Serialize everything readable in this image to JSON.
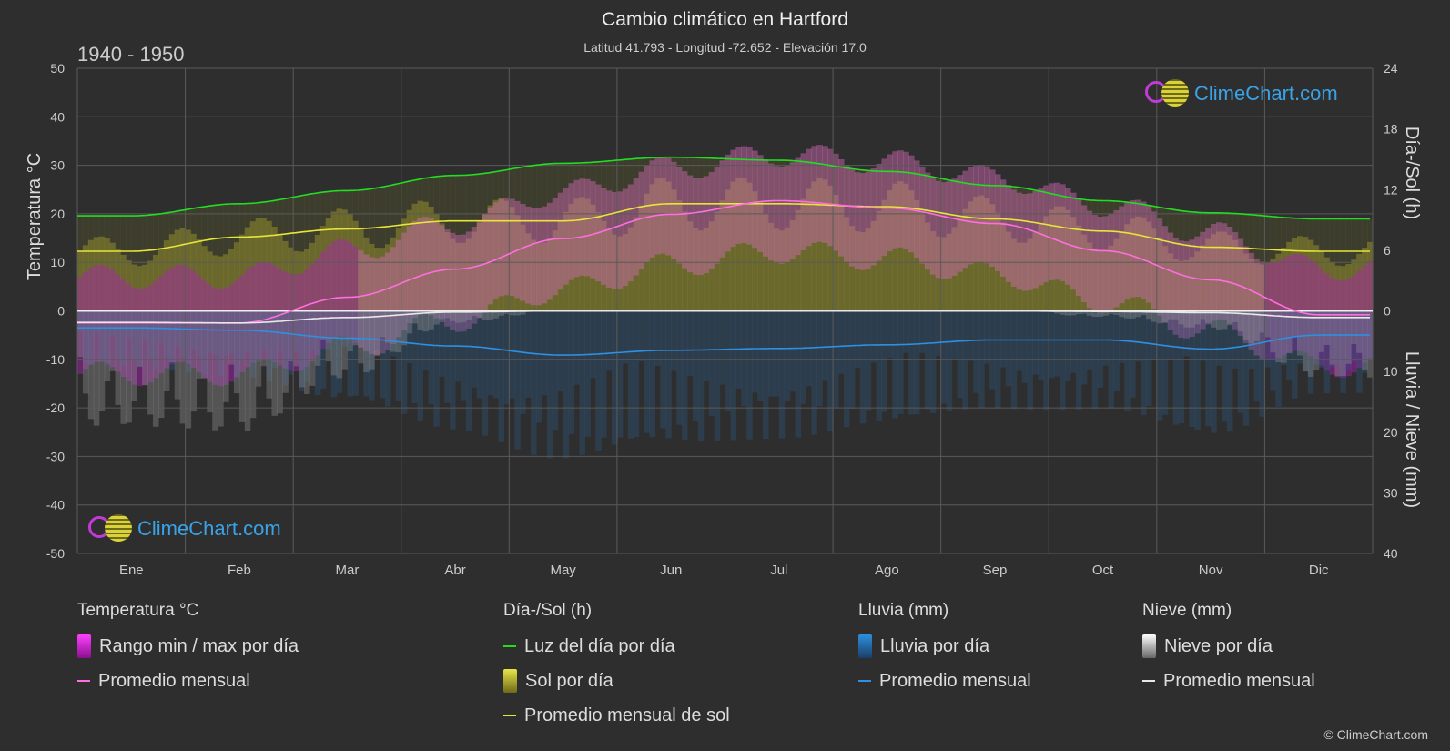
{
  "header": {
    "title": "Cambio climático en Hartford",
    "subtitle": "Latitud 41.793 - Longitud -72.652 - Elevación 17.0",
    "period": "1940 - 1950"
  },
  "chart_data": {
    "type": "line",
    "months": [
      "Ene",
      "Feb",
      "Mar",
      "Abr",
      "May",
      "Jun",
      "Jul",
      "Ago",
      "Sep",
      "Oct",
      "Nov",
      "Dic"
    ],
    "axes": {
      "left": {
        "label": "Temperatura °C",
        "min": -50,
        "max": 50,
        "ticks": [
          50,
          40,
          30,
          20,
          10,
          0,
          -10,
          -20,
          -30,
          -40,
          -50
        ]
      },
      "right_top": {
        "label": "Día-/Sol (h)",
        "min": 0,
        "max": 24,
        "ticks": [
          24,
          18,
          12,
          6,
          0
        ]
      },
      "right_bottom": {
        "label": "Lluvia / Nieve (mm)",
        "min": 0,
        "max": 40,
        "ticks": [
          0,
          10,
          20,
          30,
          40
        ]
      }
    },
    "series": [
      {
        "name": "Luz del día por día",
        "axis": "right_top",
        "color": "#22dd22",
        "values": [
          9.4,
          10.6,
          11.9,
          13.4,
          14.6,
          15.2,
          14.9,
          13.8,
          12.4,
          10.9,
          9.7,
          9.1
        ]
      },
      {
        "name": "Promedio mensual de sol",
        "axis": "right_top",
        "color": "#e6e63a",
        "values": [
          5.9,
          7.3,
          8.1,
          8.9,
          8.9,
          10.6,
          10.6,
          10.3,
          9.1,
          7.9,
          6.3,
          5.9
        ]
      },
      {
        "name": "Promedio mensual (temperatura)",
        "axis": "left",
        "color": "#ff6ee0",
        "values": [
          -2.5,
          -2.5,
          2.8,
          8.6,
          14.9,
          19.9,
          22.7,
          21.2,
          18.0,
          12.4,
          6.4,
          -0.8
        ]
      },
      {
        "name": "Promedio mensual (lluvia)",
        "axis": "right_bottom",
        "color": "#2f8fe0",
        "values": [
          2.8,
          3.2,
          4.5,
          5.8,
          7.3,
          6.5,
          6.2,
          5.6,
          4.8,
          4.8,
          6.3,
          4.0
        ]
      },
      {
        "name": "Promedio mensual (nieve)",
        "axis": "right_bottom",
        "color": "#e8e8e8",
        "values": [
          1.9,
          2.0,
          1.1,
          0.2,
          0.0,
          0.0,
          0.0,
          0.0,
          0.0,
          0.1,
          0.3,
          1.1
        ]
      }
    ],
    "grid": true
  },
  "legend": {
    "temperature": {
      "title": "Temperatura °C",
      "range": "Rango min / max por día",
      "avg": "Promedio mensual",
      "range_color": "#d020d8",
      "avg_color": "#ff6ee0"
    },
    "daysun": {
      "title": "Día-/Sol (h)",
      "daylight": "Luz del día por día",
      "sun": "Sol por día",
      "sun_avg": "Promedio mensual de sol",
      "daylight_color": "#22dd22",
      "sun_color": "#d9d23a",
      "sun_avg_color": "#e6e63a"
    },
    "rain": {
      "title": "Lluvia (mm)",
      "daily": "Lluvia por día",
      "avg": "Promedio mensual",
      "color": "#2f8fe0"
    },
    "snow": {
      "title": "Nieve (mm)",
      "daily": "Nieve por día",
      "avg": "Promedio mensual",
      "color": "#e8e8e8"
    }
  },
  "branding": {
    "logo_text": "ClimeChart.com",
    "copyright": "© ClimeChart.com"
  }
}
